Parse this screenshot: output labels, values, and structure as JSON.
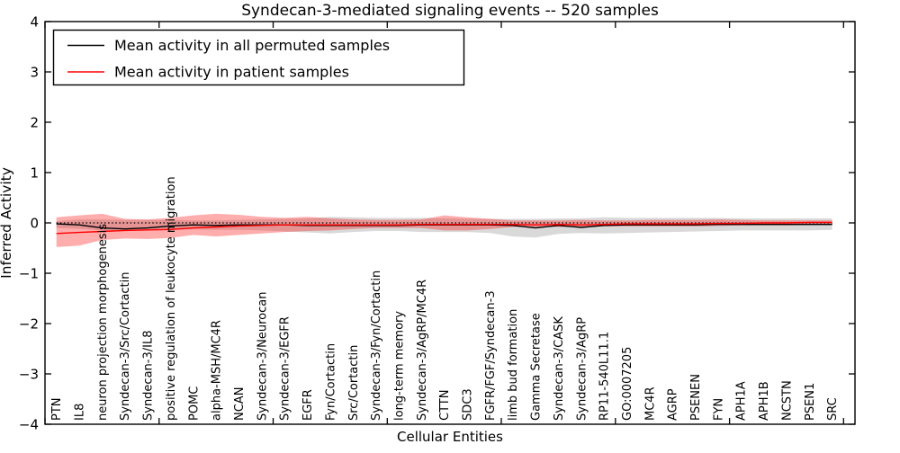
{
  "chart_data": {
    "type": "line",
    "title": "Syndecan-3-mediated signaling events -- 520 samples",
    "xlabel": "Cellular Entities",
    "ylabel": "Inferred Activity",
    "ylim": [
      -4,
      4
    ],
    "yticks": [
      4,
      3,
      2,
      1,
      0,
      -1,
      -2,
      -3,
      -4
    ],
    "ytick_labels": [
      "4",
      "3",
      "2",
      "1",
      "0",
      "−1",
      "−2",
      "−3",
      "−4"
    ],
    "grid": false,
    "legend_position": "upper left",
    "baseline": 0,
    "categories": [
      "PTN",
      "IL8",
      "neuron projection morphogenesis",
      "Syndecan-3/Src/Cortactin",
      "Syndecan-3/IL8",
      "positive regulation of leukocyte migration",
      "POMC",
      "alpha-MSH/MC4R",
      "NCAN",
      "Syndecan-3/Neurocan",
      "Syndecan-3/EGFR",
      "EGFR",
      "Fyn/Cortactin",
      "Src/Cortactin",
      "Syndecan-3/Fyn/Cortactin",
      "long-term memory",
      "Syndecan-3/AgRP/MC4R",
      "CTTN",
      "SDC3",
      "FGFR/FGF/Syndecan-3",
      "limb bud formation",
      "Gamma Secretase",
      "Syndecan-3/CASK",
      "Syndecan-3/AgRP",
      "RP11-540L11.1",
      "GO:0007205",
      "MC4R",
      "AGRP",
      "PSENEN",
      "FYN",
      "APH1A",
      "APH1B",
      "NCSTN",
      "PSEN1",
      "SRC"
    ],
    "series": [
      {
        "name": "Mean activity in all permuted samples",
        "color": "#000000",
        "values": [
          -0.02,
          -0.04,
          -0.1,
          -0.12,
          -0.1,
          -0.06,
          -0.04,
          -0.05,
          -0.04,
          -0.04,
          -0.04,
          -0.05,
          -0.05,
          -0.05,
          -0.05,
          -0.05,
          -0.04,
          -0.04,
          -0.04,
          -0.04,
          -0.05,
          -0.1,
          -0.05,
          -0.09,
          -0.05,
          -0.04,
          -0.04,
          -0.04,
          -0.04,
          -0.03,
          -0.03,
          -0.03,
          -0.03,
          -0.03,
          -0.03
        ]
      },
      {
        "name": "Mean activity in patient samples",
        "color": "#ff0000",
        "values": [
          -0.21,
          -0.19,
          -0.17,
          -0.15,
          -0.14,
          -0.13,
          -0.1,
          -0.08,
          -0.06,
          -0.05,
          -0.04,
          -0.04,
          -0.04,
          -0.04,
          -0.04,
          -0.04,
          -0.03,
          -0.03,
          -0.03,
          -0.03,
          -0.03,
          -0.04,
          -0.03,
          -0.04,
          -0.03,
          -0.02,
          -0.02,
          -0.02,
          -0.02,
          -0.01,
          -0.01,
          0.0,
          0.0,
          0.01,
          0.01
        ]
      }
    ],
    "bands": [
      {
        "name": "permuted-sample-range",
        "color": "#000000",
        "opacity": 0.15,
        "hi": [
          0.03,
          0.07,
          0.07,
          0.06,
          0.06,
          0.06,
          0.05,
          0.05,
          0.06,
          0.07,
          0.08,
          0.09,
          0.12,
          0.11,
          0.1,
          0.1,
          0.1,
          0.09,
          0.08,
          0.08,
          0.08,
          0.08,
          0.09,
          0.09,
          0.11,
          0.1,
          0.1,
          0.1,
          0.1,
          0.1,
          0.09,
          0.09,
          0.09,
          0.09,
          0.09
        ],
        "lo": [
          -0.1,
          -0.12,
          -0.15,
          -0.16,
          -0.15,
          -0.14,
          -0.13,
          -0.14,
          -0.14,
          -0.15,
          -0.17,
          -0.19,
          -0.21,
          -0.18,
          -0.16,
          -0.16,
          -0.18,
          -0.18,
          -0.18,
          -0.2,
          -0.27,
          -0.29,
          -0.22,
          -0.2,
          -0.21,
          -0.2,
          -0.19,
          -0.18,
          -0.17,
          -0.16,
          -0.15,
          -0.15,
          -0.15,
          -0.15,
          -0.14
        ]
      },
      {
        "name": "patient-sample-range",
        "color": "#ff0000",
        "opacity": 0.32,
        "hi": [
          0.11,
          0.15,
          0.18,
          0.08,
          0.07,
          0.1,
          0.15,
          0.18,
          0.16,
          0.12,
          0.1,
          0.12,
          0.09,
          0.07,
          0.06,
          0.06,
          0.07,
          0.15,
          0.11,
          0.08,
          0.05,
          0.05,
          0.05,
          0.06,
          0.05,
          0.05,
          0.06,
          0.06,
          0.06,
          0.07,
          0.06,
          0.05,
          0.05,
          0.05,
          0.05
        ],
        "lo": [
          -0.48,
          -0.45,
          -0.34,
          -0.31,
          -0.32,
          -0.3,
          -0.24,
          -0.27,
          -0.24,
          -0.21,
          -0.18,
          -0.16,
          -0.15,
          -0.12,
          -0.1,
          -0.1,
          -0.1,
          -0.15,
          -0.15,
          -0.12,
          -0.08,
          -0.08,
          -0.08,
          -0.08,
          -0.07,
          -0.07,
          -0.07,
          -0.07,
          -0.07,
          -0.06,
          -0.05,
          -0.05,
          -0.05,
          -0.04,
          -0.04
        ]
      }
    ]
  }
}
